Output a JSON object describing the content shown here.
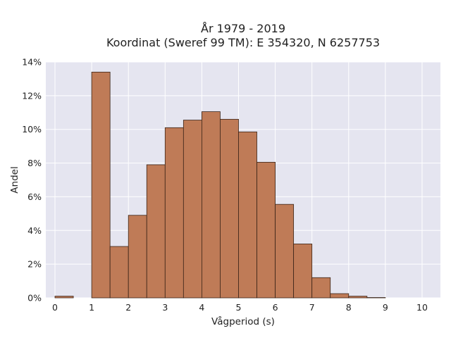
{
  "chart_data": {
    "type": "bar",
    "title": "År 1979 - 2019",
    "subtitle": "Koordinat (Sweref 99 TM): E 354320, N 6257753",
    "xlabel": "Vågperiod (s)",
    "ylabel": "Andel",
    "xlim": [
      -0.25,
      10.5
    ],
    "ylim": [
      0,
      14
    ],
    "x_ticks": [
      "0",
      "1",
      "2",
      "3",
      "4",
      "5",
      "6",
      "7",
      "8",
      "9",
      "10"
    ],
    "y_ticks": [
      "0%",
      "2%",
      "4%",
      "6%",
      "8%",
      "10%",
      "12%",
      "14%"
    ],
    "bin_width": 0.5,
    "bins": [
      {
        "x0": 0.0,
        "value": 0.1
      },
      {
        "x0": 0.5,
        "value": 0.0
      },
      {
        "x0": 1.0,
        "value": 13.4
      },
      {
        "x0": 1.5,
        "value": 3.05
      },
      {
        "x0": 2.0,
        "value": 4.9
      },
      {
        "x0": 2.5,
        "value": 7.9
      },
      {
        "x0": 3.0,
        "value": 10.1
      },
      {
        "x0": 3.5,
        "value": 10.55
      },
      {
        "x0": 4.0,
        "value": 11.05
      },
      {
        "x0": 4.5,
        "value": 10.6
      },
      {
        "x0": 5.0,
        "value": 9.85
      },
      {
        "x0": 5.5,
        "value": 8.05
      },
      {
        "x0": 6.0,
        "value": 5.55
      },
      {
        "x0": 6.5,
        "value": 3.2
      },
      {
        "x0": 7.0,
        "value": 1.2
      },
      {
        "x0": 7.5,
        "value": 0.25
      },
      {
        "x0": 8.0,
        "value": 0.1
      },
      {
        "x0": 8.5,
        "value": 0.02
      }
    ],
    "grid": true,
    "legend": "none",
    "colors": {
      "bar_fill": "#bf7b57",
      "bar_edge": "#3a2418",
      "plot_background": "#e5e5f0",
      "grid": "#ffffff"
    }
  }
}
